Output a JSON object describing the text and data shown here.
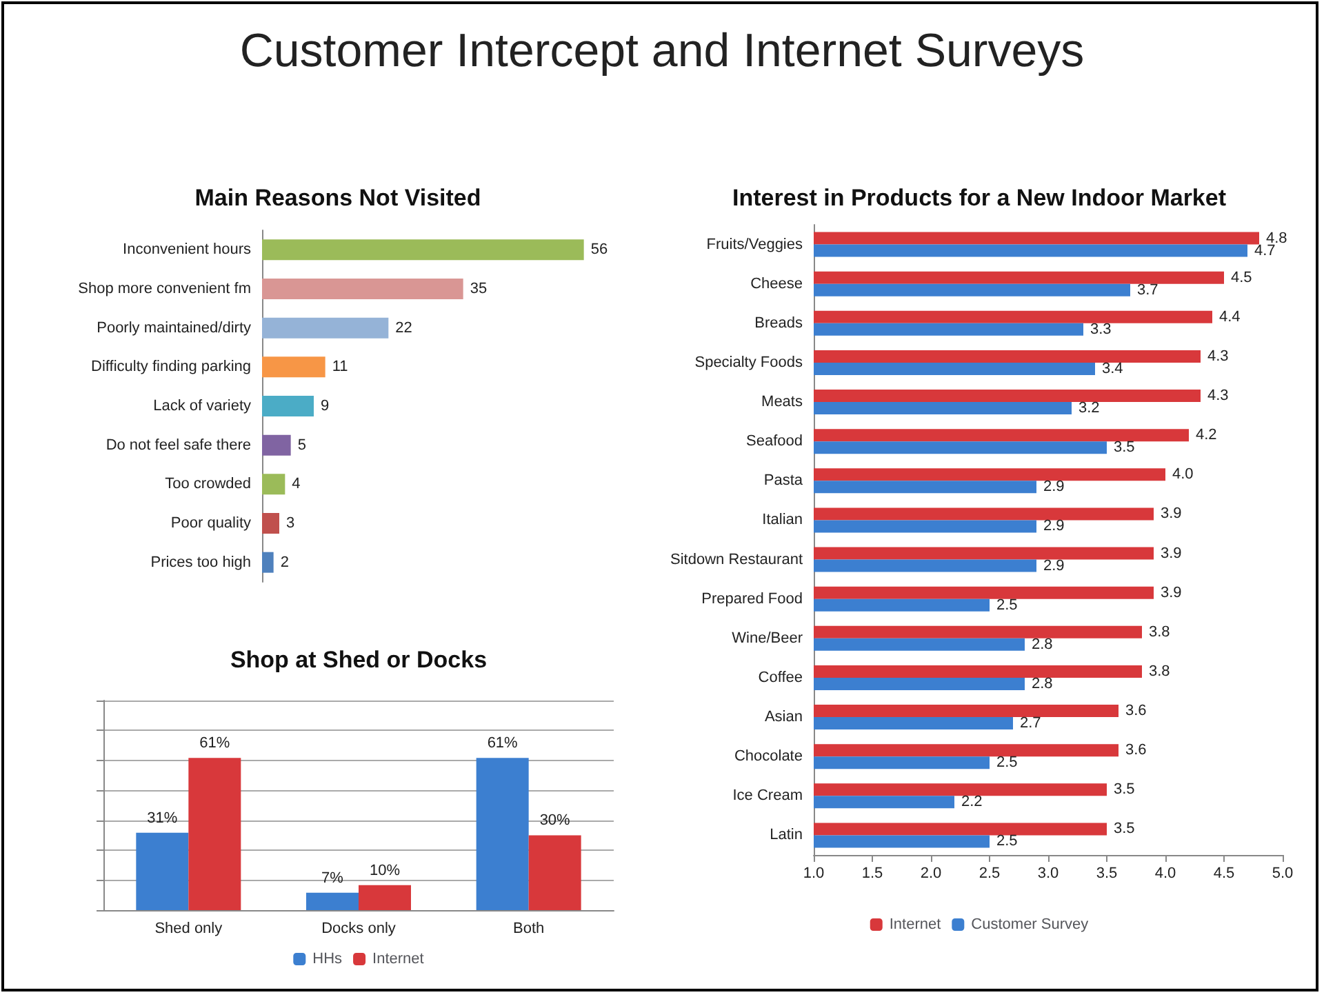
{
  "chart_data": [
    {
      "type": "bar",
      "orientation": "horizontal",
      "title": "Main Reasons Not Visited",
      "annotations": [
        "Customer Intercept and Internet Surveys"
      ],
      "categories": [
        "Inconvenient hours",
        "Shop more convenient fm",
        "Poorly maintained/dirty",
        "Difficulty finding parking",
        "Lack of variety",
        "Do not feel safe there",
        "Too crowded",
        "Poor quality",
        "Prices too high"
      ],
      "values": [
        56,
        35,
        22,
        11,
        9,
        5,
        4,
        3,
        2
      ],
      "colors": [
        "#9bbb59",
        "#d99694",
        "#95b3d7",
        "#f79646",
        "#4bacc6",
        "#8064a2",
        "#9bbb59",
        "#c0504d",
        "#4f81bd"
      ],
      "data_labels": true,
      "tick_labels": "y"
    },
    {
      "type": "bar",
      "title": "Shop at Shed or Docks",
      "categories": [
        "Shed only",
        "Docks only",
        "Both"
      ],
      "series": [
        {
          "name": "HHs",
          "color": "#3c7fd0",
          "values": [
            31,
            7,
            61
          ],
          "value_labels": [
            "31%",
            "7%",
            "61%"
          ]
        },
        {
          "name": "Internet",
          "color": "#d8383b",
          "values": [
            61,
            10,
            30
          ],
          "value_labels": [
            "61%",
            "10%",
            "30%"
          ]
        }
      ],
      "ylim": [
        0,
        84
      ],
      "yticks": [
        {
          "value": 0,
          "label": null
        },
        {
          "value": 12,
          "label": null
        },
        {
          "value": 24,
          "label": null
        },
        {
          "value": 36,
          "label": null
        },
        {
          "value": 48,
          "label": null
        },
        {
          "value": 60,
          "label": null
        },
        {
          "value": 72,
          "label": null
        },
        {
          "value": 84,
          "label": null
        }
      ],
      "grid": "y",
      "legend": "bottom",
      "tick_labels": "x"
    },
    {
      "type": "bar",
      "orientation": "horizontal",
      "title": "Interest in Products for a New Indoor Market",
      "categories": [
        "Fruits/Veggies",
        "Cheese",
        "Breads",
        "Specialty Foods",
        "Meats",
        "Seafood",
        "Pasta",
        "Italian",
        "Sitdown Restaurant",
        "Prepared Food",
        "Wine/Beer",
        "Coffee",
        "Asian",
        "Chocolate",
        "Ice Cream",
        "Latin"
      ],
      "series": [
        {
          "name": "Internet",
          "color": "#d8383b",
          "values": [
            4.8,
            4.5,
            4.4,
            4.3,
            4.3,
            4.2,
            4.0,
            3.9,
            3.9,
            3.9,
            3.8,
            3.8,
            3.6,
            3.6,
            3.5,
            3.5
          ],
          "value_labels": [
            "4.8",
            "4.5",
            "4.4",
            "4.3",
            "4.3",
            "4.2",
            "4.0",
            "3.9",
            "3.9",
            "3.9",
            "3.8",
            "3.8",
            "3.6",
            "3.6",
            "3.5",
            "3.5"
          ]
        },
        {
          "name": "Customer Survey",
          "color": "#3c7fd0",
          "values": [
            4.7,
            3.7,
            3.3,
            3.4,
            3.2,
            3.5,
            2.9,
            2.9,
            2.9,
            2.5,
            2.8,
            2.8,
            2.7,
            2.5,
            2.2,
            2.5
          ],
          "value_labels": [
            "4.7",
            "3.7",
            "3.3",
            "3.4",
            "3.2",
            "3.5",
            "2.9",
            "2.9",
            "2.9",
            "2.5",
            "2.8",
            "2.8",
            "2.7",
            "2.5",
            "2.2",
            "2.5"
          ]
        }
      ],
      "xlim": [
        1,
        5
      ],
      "xticks": [
        {
          "value": 1,
          "label": "1.0"
        },
        {
          "value": 1.5,
          "label": "1.5"
        },
        {
          "value": 2,
          "label": "2.0"
        },
        {
          "value": 2.5,
          "label": "2.5"
        },
        {
          "value": 3,
          "label": "3.0"
        },
        {
          "value": 3.5,
          "label": "3.5"
        },
        {
          "value": 4,
          "label": "4.0"
        },
        {
          "value": 4.5,
          "label": "4.5"
        },
        {
          "value": 5,
          "label": "5.0"
        }
      ],
      "legend": "bottom"
    }
  ]
}
